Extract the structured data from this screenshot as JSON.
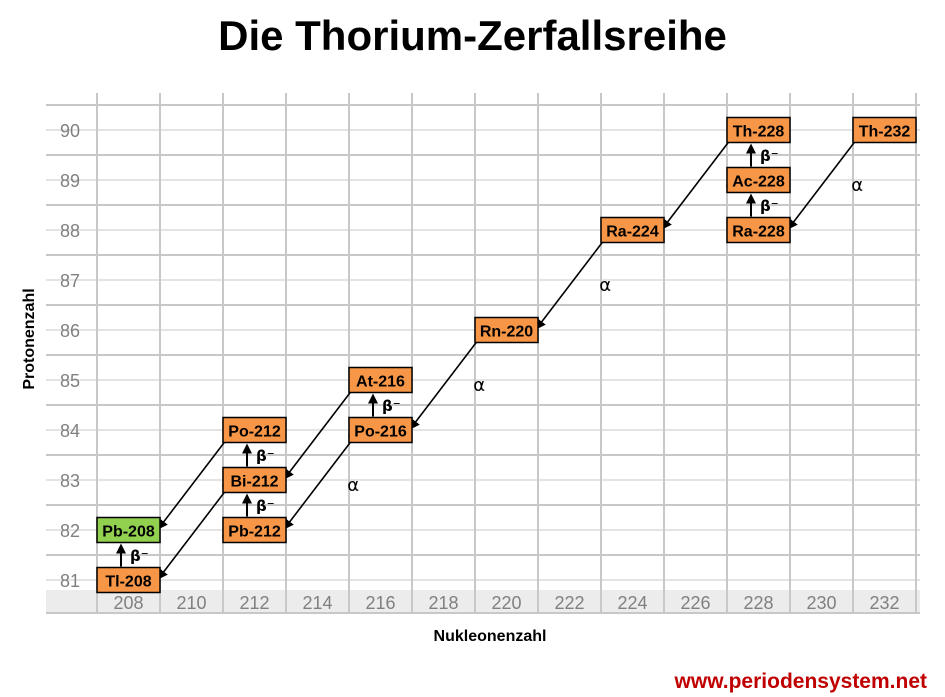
{
  "title": "Die Thorium-Zerfallsreihe",
  "url": "www.periodensystem.net",
  "chart_data": {
    "type": "diagram",
    "xlabel": "Nukleonenzahl",
    "ylabel": "Protonenzahl",
    "x_ticks": [
      "208",
      "210",
      "212",
      "214",
      "216",
      "218",
      "220",
      "222",
      "224",
      "226",
      "228",
      "230",
      "232"
    ],
    "y_ticks": [
      "90",
      "89",
      "88",
      "87",
      "86",
      "85",
      "84",
      "83",
      "82",
      "81"
    ],
    "nuclides": [
      {
        "label": "Th-232",
        "A": 232,
        "Z": 90,
        "stable": false
      },
      {
        "label": "Th-228",
        "A": 228,
        "Z": 90,
        "stable": false
      },
      {
        "label": "Ac-228",
        "A": 228,
        "Z": 89,
        "stable": false
      },
      {
        "label": "Ra-228",
        "A": 228,
        "Z": 88,
        "stable": false
      },
      {
        "label": "Ra-224",
        "A": 224,
        "Z": 88,
        "stable": false
      },
      {
        "label": "Rn-220",
        "A": 220,
        "Z": 86,
        "stable": false
      },
      {
        "label": "At-216",
        "A": 216,
        "Z": 85,
        "stable": false
      },
      {
        "label": "Po-216",
        "A": 216,
        "Z": 84,
        "stable": false
      },
      {
        "label": "Po-212",
        "A": 212,
        "Z": 84,
        "stable": false
      },
      {
        "label": "Bi-212",
        "A": 212,
        "Z": 83,
        "stable": false
      },
      {
        "label": "Pb-212",
        "A": 212,
        "Z": 82,
        "stable": false
      },
      {
        "label": "Pb-208",
        "A": 208,
        "Z": 82,
        "stable": true
      },
      {
        "label": "Tl-208",
        "A": 208,
        "Z": 81,
        "stable": false
      }
    ],
    "alpha_symbol": "α",
    "beta_symbol": "β⁻",
    "alpha_decays": [
      {
        "from": "Th-232",
        "to": "Ra-228"
      },
      {
        "from": "Th-228",
        "to": "Ra-224"
      },
      {
        "from": "Ra-224",
        "to": "Rn-220"
      },
      {
        "from": "Rn-220",
        "to": "Po-216"
      },
      {
        "from": "Po-216",
        "to": "Pb-212"
      },
      {
        "from": "At-216",
        "to": "Bi-212"
      },
      {
        "from": "Po-212",
        "to": "Pb-208"
      },
      {
        "from": "Bi-212",
        "to": "Tl-208"
      }
    ],
    "beta_decays": [
      {
        "from": "Ra-228",
        "to": "Ac-228"
      },
      {
        "from": "Ac-228",
        "to": "Th-228"
      },
      {
        "from": "Po-216",
        "to": "At-216"
      },
      {
        "from": "Pb-212",
        "to": "Bi-212"
      },
      {
        "from": "Bi-212",
        "to": "Po-212"
      },
      {
        "from": "Tl-208",
        "to": "Pb-208"
      }
    ],
    "colors": {
      "unstable": "#f79646",
      "stable": "#92d050",
      "grid": "#c8c8c8",
      "tick_text": "#808080",
      "tick_band": "#ececec"
    }
  }
}
